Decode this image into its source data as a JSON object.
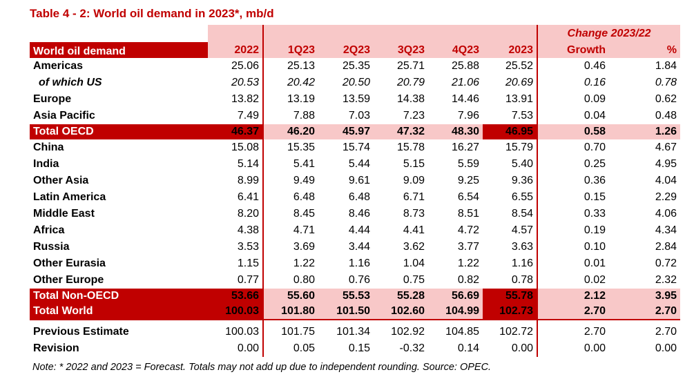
{
  "title": "Table 4 - 2: World oil demand in 2023*, mb/d",
  "header": {
    "change_caption": "Change 2023/22",
    "row_label": "World oil demand",
    "columns": [
      "2022",
      "1Q23",
      "2Q23",
      "3Q23",
      "4Q23",
      "2023",
      "Growth",
      "%"
    ]
  },
  "rows": [
    {
      "label": "Americas",
      "values": [
        "25.06",
        "25.13",
        "25.35",
        "25.71",
        "25.88",
        "25.52",
        "0.46",
        "1.84"
      ]
    },
    {
      "label": "of which US",
      "values": [
        "20.53",
        "20.42",
        "20.50",
        "20.79",
        "21.06",
        "20.69",
        "0.16",
        "0.78"
      ]
    },
    {
      "label": "Europe",
      "values": [
        "13.82",
        "13.19",
        "13.59",
        "14.38",
        "14.46",
        "13.91",
        "0.09",
        "0.62"
      ]
    },
    {
      "label": "Asia Pacific",
      "values": [
        "7.49",
        "7.88",
        "7.03",
        "7.23",
        "7.96",
        "7.53",
        "0.04",
        "0.48"
      ]
    },
    {
      "label": "Total OECD",
      "values": [
        "46.37",
        "46.20",
        "45.97",
        "47.32",
        "48.30",
        "46.95",
        "0.58",
        "1.26"
      ]
    },
    {
      "label": "China",
      "values": [
        "15.08",
        "15.35",
        "15.74",
        "15.78",
        "16.27",
        "15.79",
        "0.70",
        "4.67"
      ]
    },
    {
      "label": "India",
      "values": [
        "5.14",
        "5.41",
        "5.44",
        "5.15",
        "5.59",
        "5.40",
        "0.25",
        "4.95"
      ]
    },
    {
      "label": "Other Asia",
      "values": [
        "8.99",
        "9.49",
        "9.61",
        "9.09",
        "9.25",
        "9.36",
        "0.36",
        "4.04"
      ]
    },
    {
      "label": "Latin America",
      "values": [
        "6.41",
        "6.48",
        "6.48",
        "6.71",
        "6.54",
        "6.55",
        "0.15",
        "2.29"
      ]
    },
    {
      "label": "Middle East",
      "values": [
        "8.20",
        "8.45",
        "8.46",
        "8.73",
        "8.51",
        "8.54",
        "0.33",
        "4.06"
      ]
    },
    {
      "label": "Africa",
      "values": [
        "4.38",
        "4.71",
        "4.44",
        "4.41",
        "4.72",
        "4.57",
        "0.19",
        "4.34"
      ]
    },
    {
      "label": "Russia",
      "values": [
        "3.53",
        "3.69",
        "3.44",
        "3.62",
        "3.77",
        "3.63",
        "0.10",
        "2.84"
      ]
    },
    {
      "label": "Other Eurasia",
      "values": [
        "1.15",
        "1.22",
        "1.16",
        "1.04",
        "1.22",
        "1.16",
        "0.01",
        "0.72"
      ]
    },
    {
      "label": "Other Europe",
      "values": [
        "0.77",
        "0.80",
        "0.76",
        "0.75",
        "0.82",
        "0.78",
        "0.02",
        "2.32"
      ]
    },
    {
      "label": "Total Non-OECD",
      "values": [
        "53.66",
        "55.60",
        "55.53",
        "55.28",
        "56.69",
        "55.78",
        "2.12",
        "3.95"
      ]
    },
    {
      "label": "Total World",
      "values": [
        "100.03",
        "101.80",
        "101.50",
        "102.60",
        "104.99",
        "102.73",
        "2.70",
        "2.70"
      ]
    },
    {
      "label": "Previous Estimate",
      "values": [
        "100.03",
        "101.75",
        "101.34",
        "102.92",
        "104.85",
        "102.72",
        "2.70",
        "2.70"
      ]
    },
    {
      "label": "Revision",
      "values": [
        "0.00",
        "0.05",
        "0.15",
        "-0.32",
        "0.14",
        "0.00",
        "0.00",
        "0.00"
      ]
    }
  ],
  "note": "Note: * 2022 and 2023 = Forecast. Totals may not add up due to independent rounding. Source: OPEC.",
  "colors": {
    "accent": "#c00000",
    "highlight": "#f8c8c8"
  }
}
